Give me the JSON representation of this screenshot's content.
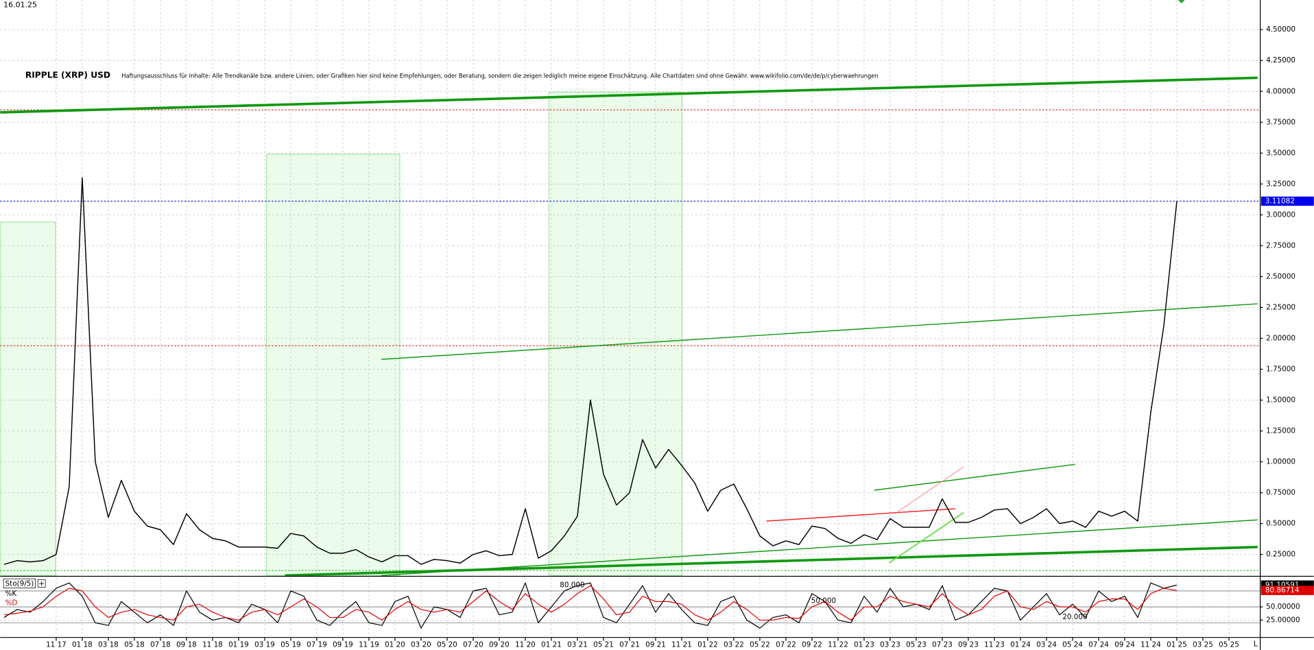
{
  "date": "16.01.25",
  "chart_data": [
    {
      "type": "line",
      "title": "RIPPLE (XRP) USD",
      "subtitle": "Haftungsausschluss für Inhalte: Alle Trendkanäle bzw. andere Linien, oder Grafiken hier sind keine Empfehlungen, oder Beratung, sondern die zeigen lediglich meine eigene Einschätzung. Alle Chartdaten sind ohne Gewähr. www.wikifolio.com/de/de/p/cyberwaehrungen",
      "ylim": [
        0.08,
        4.74
      ],
      "yticks": [
        {
          "value": 0.25,
          "label": "0.25000"
        },
        {
          "value": 0.5,
          "label": "0.50000"
        },
        {
          "value": 0.75,
          "label": "0.75000"
        },
        {
          "value": 1,
          "label": "1.00000"
        },
        {
          "value": 1.25,
          "label": "1.25000"
        },
        {
          "value": 1.5,
          "label": "1.50000"
        },
        {
          "value": 1.75,
          "label": "1.75000"
        },
        {
          "value": 2,
          "label": "2.00000"
        },
        {
          "value": 2.25,
          "label": "2.25000"
        },
        {
          "value": 2.5,
          "label": "2.50000"
        },
        {
          "value": 2.75,
          "label": "2.75000"
        },
        {
          "value": 3,
          "label": "3.00000"
        },
        {
          "value": 3.25,
          "label": "3.25000"
        },
        {
          "value": 3.5,
          "label": "3.50000"
        },
        {
          "value": 3.75,
          "label": "3.75000"
        },
        {
          "value": 4,
          "label": "4.00000"
        },
        {
          "value": 4.25,
          "label": "4.25000"
        },
        {
          "value": 4.5,
          "label": "4.50000"
        }
      ],
      "grid": true,
      "color": "#000000",
      "last_color": "#0000ee",
      "values": [
        0.17,
        0.2,
        0.19,
        0.2,
        0.25,
        0.8,
        3.3,
        1.0,
        0.55,
        0.85,
        0.6,
        0.48,
        0.45,
        0.33,
        0.58,
        0.45,
        0.38,
        0.36,
        0.31,
        0.31,
        0.31,
        0.3,
        0.42,
        0.4,
        0.31,
        0.26,
        0.26,
        0.29,
        0.23,
        0.19,
        0.24,
        0.24,
        0.17,
        0.21,
        0.2,
        0.18,
        0.25,
        0.28,
        0.24,
        0.25,
        0.62,
        0.22,
        0.28,
        0.4,
        0.56,
        1.5,
        0.9,
        0.65,
        0.75,
        1.18,
        0.95,
        1.1,
        0.97,
        0.83,
        0.6,
        0.77,
        0.82,
        0.62,
        0.4,
        0.32,
        0.36,
        0.33,
        0.48,
        0.46,
        0.38,
        0.34,
        0.41,
        0.37,
        0.54,
        0.47,
        0.47,
        0.47,
        0.7,
        0.51,
        0.51,
        0.55,
        0.61,
        0.62,
        0.5,
        0.55,
        0.62,
        0.5,
        0.52,
        0.47,
        0.6,
        0.56,
        0.6,
        0.52,
        1.4,
        2.1,
        3.11082,
        null,
        null,
        null,
        null,
        null,
        null
      ],
      "hlines": [
        {
          "value": 3.85,
          "color": "#e03030"
        },
        {
          "value": 3.11082,
          "color": "#2020ee"
        },
        {
          "value": 1.94,
          "color": "#e03030"
        },
        {
          "value": 0.12,
          "color": "#22bb22"
        }
      ],
      "trendlines": [
        {
          "color": "#119911",
          "width": 3,
          "x": [
            -0.3,
            96.2
          ],
          "y": [
            3.83,
            4.11
          ]
        },
        {
          "color": "#119911",
          "width": 1.2,
          "x": [
            28.96,
            96.2
          ],
          "y": [
            1.83,
            2.28
          ]
        },
        {
          "color": "#119911",
          "width": 3,
          "x": [
            21.56,
            96.2
          ],
          "y": [
            0.08,
            0.31
          ]
        },
        {
          "color": "#119911",
          "width": 1.2,
          "x": [
            28.96,
            96.2
          ],
          "y": [
            0.08,
            0.53
          ]
        },
        {
          "color": "#119911",
          "width": 1.2,
          "x": [
            66.77,
            82.2
          ],
          "y": [
            0.77,
            0.98
          ]
        },
        {
          "color": "#ee2222",
          "width": 1.2,
          "x": [
            58.5,
            73.0
          ],
          "y": [
            0.52,
            0.62
          ]
        },
        {
          "color": "#66dd44",
          "width": 1.5,
          "x": [
            67.9,
            73.65
          ],
          "y": [
            0.18,
            0.59
          ]
        },
        {
          "color": "#ff9999",
          "width": 1,
          "x": [
            68.5,
            73.65
          ],
          "y": [
            0.59,
            0.96
          ]
        }
      ]
    },
    {
      "type": "line",
      "title": "Sto(9/5)",
      "categories": [
        null,
        null,
        null,
        null,
        "11 17",
        null,
        "01 18",
        null,
        "03 18",
        null,
        "05 18",
        null,
        "07 18",
        null,
        "09 18",
        null,
        "11 18",
        null,
        "01 19",
        null,
        "03 19",
        null,
        "05 19",
        null,
        "07 19",
        null,
        "09 19",
        null,
        "11 19",
        null,
        "01 20",
        null,
        "03 20",
        null,
        "05 20",
        null,
        "07 20",
        null,
        "09 20",
        null,
        "11 20",
        null,
        "01 21",
        null,
        "03 21",
        null,
        "05 21",
        null,
        "07 21",
        null,
        "09 21",
        null,
        "11 21",
        null,
        "01 22",
        null,
        "03 22",
        null,
        "05 22",
        null,
        "07 22",
        null,
        "09 22",
        null,
        "11 22",
        null,
        "01 23",
        null,
        "03 23",
        null,
        "05 23",
        null,
        "07 23",
        null,
        "09 23",
        null,
        "11 23",
        null,
        "01 24",
        null,
        "03 24",
        null,
        "05 24",
        null,
        "07 24",
        null,
        "09 24",
        null,
        "11 24",
        null,
        "01 25",
        null,
        "03 25",
        null,
        "05 25",
        null,
        null
      ],
      "ylim": [
        -6,
        106
      ],
      "yticks": [
        {
          "value": 25,
          "label": "25.00000"
        },
        {
          "value": 50,
          "label": "50.00000"
        }
      ],
      "levels": [
        {
          "value": 80,
          "label": "80.000"
        },
        {
          "value": 50,
          "label": "50.000"
        },
        {
          "value": 20,
          "label": "20.000"
        }
      ],
      "series": [
        {
          "name": "%K",
          "color": "#000000",
          "values": [
            30,
            45,
            40,
            60,
            85,
            95,
            70,
            20,
            15,
            60,
            40,
            20,
            35,
            15,
            80,
            40,
            25,
            30,
            20,
            55,
            45,
            20,
            80,
            70,
            25,
            15,
            40,
            60,
            20,
            15,
            60,
            70,
            10,
            50,
            45,
            30,
            80,
            85,
            35,
            40,
            95,
            20,
            50,
            80,
            90,
            95,
            30,
            20,
            55,
            90,
            40,
            75,
            45,
            20,
            15,
            60,
            70,
            25,
            10,
            30,
            35,
            20,
            75,
            60,
            25,
            20,
            70,
            40,
            85,
            50,
            55,
            45,
            90,
            25,
            35,
            60,
            85,
            80,
            25,
            50,
            75,
            35,
            55,
            30,
            80,
            60,
            70,
            30,
            95,
            85,
            91.10591,
            null,
            null,
            null,
            null,
            null,
            null
          ]
        },
        {
          "name": "%D",
          "color": "#e00000",
          "values": [
            35,
            38,
            42,
            50,
            70,
            85,
            80,
            50,
            30,
            40,
            45,
            35,
            30,
            25,
            50,
            55,
            40,
            30,
            25,
            40,
            45,
            35,
            50,
            65,
            50,
            30,
            30,
            45,
            40,
            25,
            45,
            60,
            45,
            40,
            45,
            40,
            60,
            80,
            60,
            45,
            75,
            55,
            40,
            55,
            75,
            90,
            65,
            35,
            40,
            70,
            60,
            60,
            55,
            35,
            25,
            40,
            60,
            45,
            25,
            25,
            30,
            28,
            50,
            60,
            40,
            25,
            50,
            50,
            70,
            60,
            55,
            50,
            75,
            50,
            35,
            45,
            70,
            80,
            50,
            45,
            60,
            50,
            50,
            40,
            60,
            65,
            65,
            45,
            75,
            85,
            80.86714,
            null,
            null,
            null,
            null,
            null,
            null
          ]
        }
      ],
      "corner_label": "L"
    }
  ]
}
